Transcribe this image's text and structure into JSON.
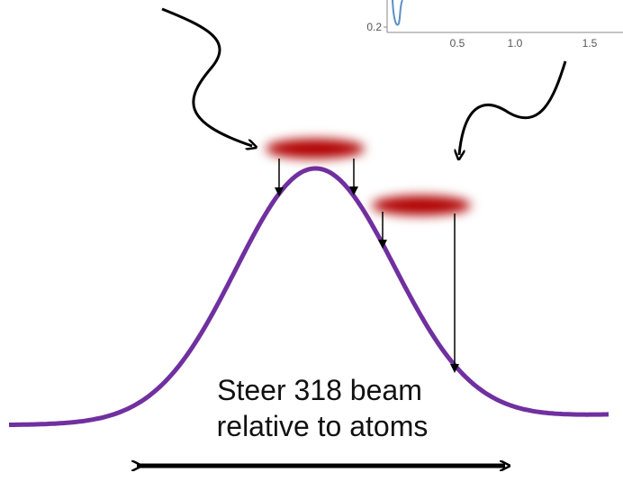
{
  "inset": {
    "y_tick": "0.2",
    "x_ticks": [
      "0.5",
      "1.0",
      "1.5"
    ]
  },
  "caption": {
    "line1": "Steer 318 beam",
    "line2": "relative to atoms"
  }
}
